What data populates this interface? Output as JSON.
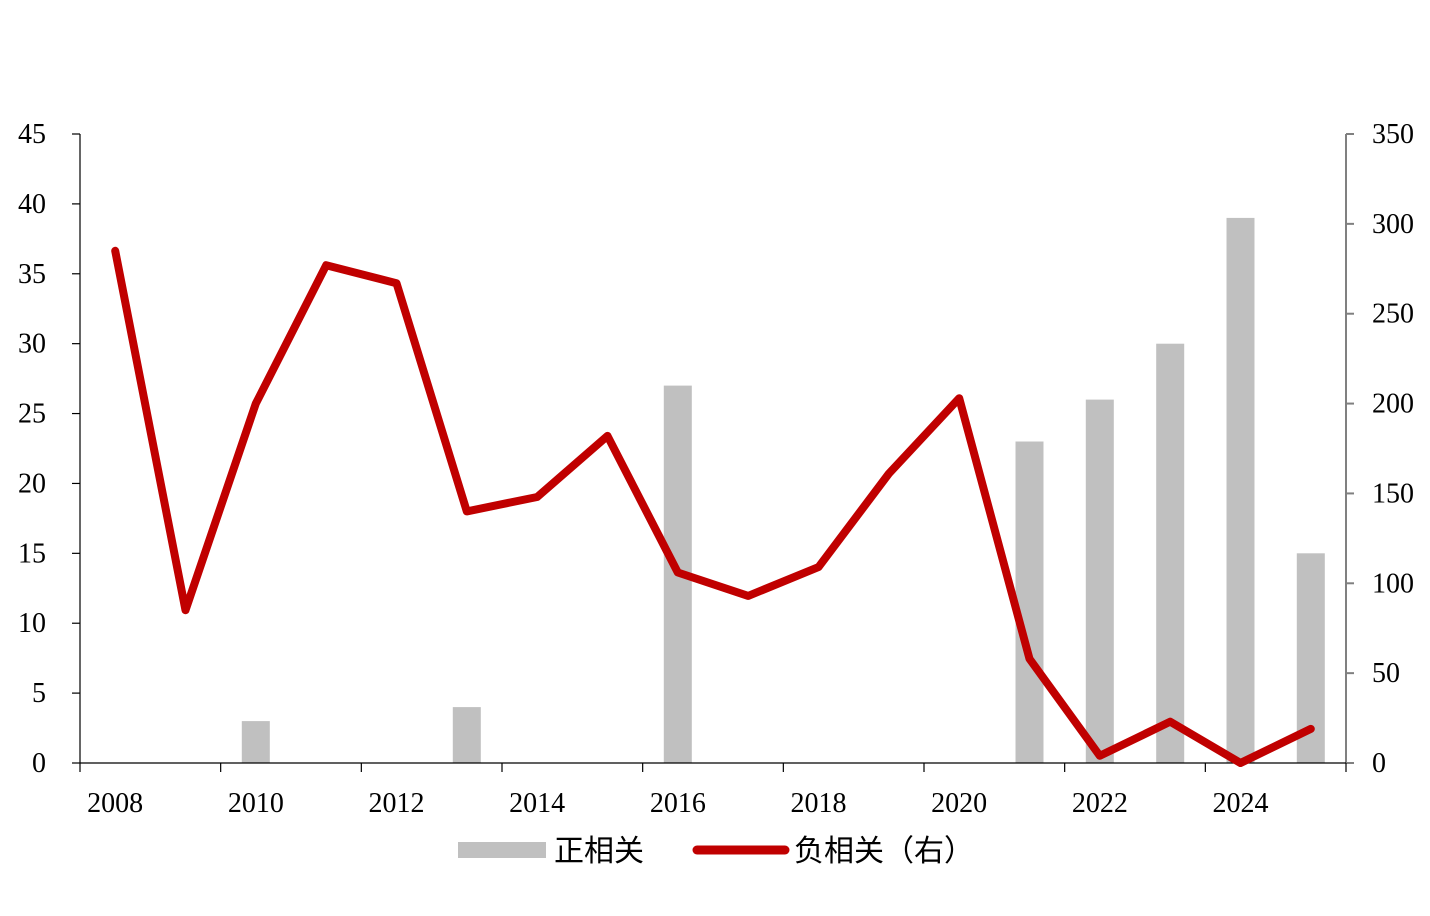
{
  "chart_data": {
    "type": "bar+line",
    "x": [
      2008,
      2009,
      2010,
      2011,
      2012,
      2013,
      2014,
      2015,
      2016,
      2017,
      2018,
      2019,
      2020,
      2021,
      2022,
      2023,
      2024,
      2025
    ],
    "x_tick_labels": [
      "2008",
      "2010",
      "2012",
      "2014",
      "2016",
      "2018",
      "2020",
      "2022",
      "2024"
    ],
    "series": [
      {
        "name": "正相关",
        "type": "bar",
        "axis": "left",
        "color": "#c0c0c0",
        "values": [
          0,
          0,
          3,
          0,
          0,
          4,
          0,
          0,
          27,
          0,
          0,
          0,
          0,
          23,
          26,
          30,
          39,
          15
        ]
      },
      {
        "name": "负相关（右）",
        "type": "line",
        "axis": "right",
        "color": "#c00000",
        "values": [
          285,
          85,
          200,
          277,
          267,
          140,
          148,
          182,
          106,
          93,
          109,
          161,
          203,
          58,
          4,
          23,
          0,
          19
        ]
      }
    ],
    "y_left": {
      "min": 0,
      "max": 45,
      "step": 5,
      "tick_labels": [
        "0",
        "5",
        "10",
        "15",
        "20",
        "25",
        "30",
        "35",
        "40",
        "45"
      ]
    },
    "y_right": {
      "min": 0,
      "max": 350,
      "step": 50,
      "tick_labels": [
        "0",
        "50",
        "100",
        "150",
        "200",
        "250",
        "300",
        "350"
      ]
    },
    "legend": {
      "placement": "bottom-center"
    },
    "grid": false
  }
}
